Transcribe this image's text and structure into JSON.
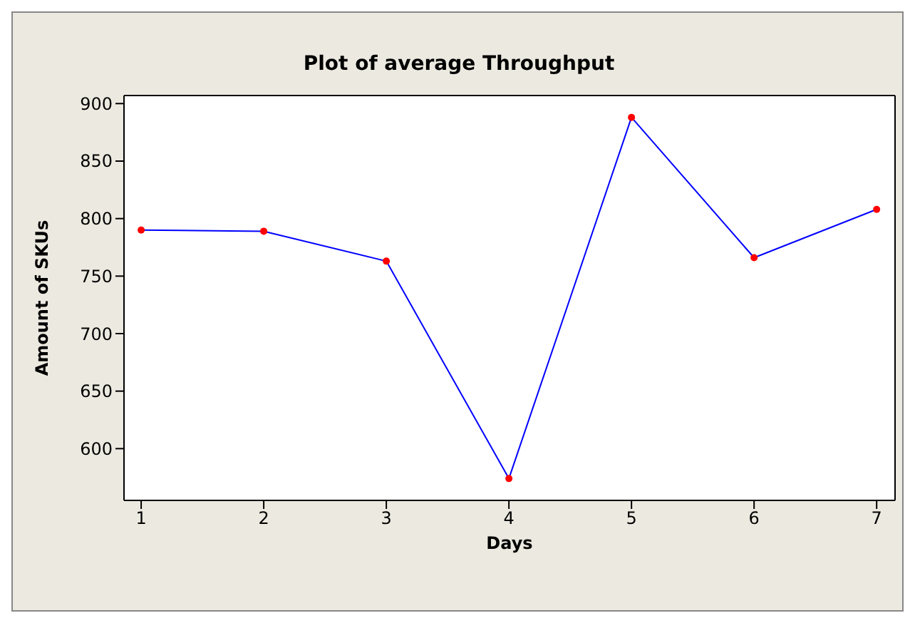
{
  "chart_data": {
    "type": "line",
    "title": "Plot of average Throughput",
    "xlabel": "Days",
    "ylabel": "Amount of SKUs",
    "x": [
      1,
      2,
      3,
      4,
      5,
      6,
      7
    ],
    "series": [
      {
        "color": "#0000ff",
        "values": [
          790,
          789,
          763,
          574,
          888,
          766,
          808
        ]
      }
    ],
    "marker": "circle",
    "line_style": "solid",
    "grid": false,
    "legend": false,
    "xlim": [
      0.86,
      7.15
    ],
    "xticks": [
      1,
      2,
      3,
      4,
      5,
      6,
      7
    ],
    "ylim": [
      555,
      907
    ],
    "yticks": [
      600,
      650,
      700,
      750,
      800,
      850,
      900
    ]
  }
}
